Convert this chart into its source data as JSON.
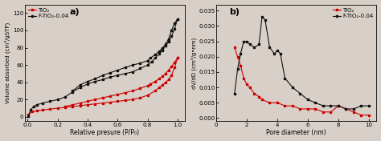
{
  "panel_a": {
    "title": "a)",
    "xlabel": "Relative presure (P/P₀)",
    "ylabel": "Volume absorbed (cm³/gSTP)",
    "ylim": [
      -5,
      130
    ],
    "xlim": [
      -0.02,
      1.05
    ],
    "yticks": [
      0,
      20,
      40,
      60,
      80,
      100,
      120
    ],
    "xticks": [
      0.0,
      0.2,
      0.4,
      0.6,
      0.8,
      1.0
    ],
    "tio2_color": "#cc0000",
    "ftio2_color": "#111111",
    "tio2_label": "TiO₂",
    "ftio2_label": "F-TiO₂-0.04",
    "tio2_adsorption_x": [
      0.005,
      0.03,
      0.06,
      0.1,
      0.15,
      0.2,
      0.25,
      0.3,
      0.35,
      0.4,
      0.45,
      0.5,
      0.55,
      0.6,
      0.65,
      0.7,
      0.75,
      0.8,
      0.85,
      0.88,
      0.9,
      0.92,
      0.94,
      0.96,
      0.98,
      1.0
    ],
    "tio2_adsorption_y": [
      3,
      6,
      7,
      8,
      9,
      10,
      11,
      12,
      13,
      14,
      15,
      16,
      17,
      18,
      19,
      20,
      22,
      25,
      30,
      34,
      37,
      40,
      43,
      48,
      57,
      68
    ],
    "tio2_desorption_x": [
      1.0,
      0.98,
      0.96,
      0.94,
      0.92,
      0.9,
      0.88,
      0.85,
      0.82,
      0.8,
      0.75,
      0.7,
      0.65,
      0.6,
      0.55,
      0.5,
      0.45,
      0.4,
      0.35,
      0.3,
      0.25
    ],
    "tio2_desorption_y": [
      68,
      63,
      58,
      54,
      50,
      47,
      44,
      41,
      38,
      36,
      33,
      30,
      28,
      26,
      24,
      22,
      20,
      18,
      16,
      14,
      12
    ],
    "ftio2_adsorption_x": [
      0.005,
      0.02,
      0.04,
      0.06,
      0.1,
      0.15,
      0.2,
      0.25,
      0.3,
      0.35,
      0.4,
      0.45,
      0.5,
      0.55,
      0.6,
      0.65,
      0.7,
      0.75,
      0.8,
      0.83,
      0.85,
      0.88,
      0.9,
      0.92,
      0.94,
      0.96,
      0.98,
      1.0
    ],
    "ftio2_adsorption_y": [
      1,
      8,
      12,
      14,
      16,
      18,
      20,
      23,
      29,
      34,
      38,
      41,
      43,
      46,
      48,
      50,
      52,
      56,
      60,
      64,
      68,
      73,
      77,
      82,
      87,
      93,
      102,
      113
    ],
    "ftio2_desorption_x": [
      1.0,
      0.98,
      0.96,
      0.94,
      0.92,
      0.9,
      0.88,
      0.85,
      0.82,
      0.8,
      0.75,
      0.7,
      0.65,
      0.6,
      0.55,
      0.5,
      0.45,
      0.4,
      0.35,
      0.3
    ],
    "ftio2_desorption_y": [
      113,
      108,
      100,
      90,
      84,
      80,
      76,
      72,
      68,
      65,
      62,
      60,
      57,
      54,
      51,
      48,
      44,
      41,
      37,
      30
    ]
  },
  "panel_b": {
    "title": "b)",
    "xlabel": "Pore diameter (nm)",
    "ylabel": "dV/dD (cm³/g•nm)",
    "ylim": [
      -0.001,
      0.037
    ],
    "xlim": [
      0,
      10.5
    ],
    "yticks": [
      0.0,
      0.005,
      0.01,
      0.015,
      0.02,
      0.025,
      0.03,
      0.035
    ],
    "xticks": [
      0,
      2,
      4,
      6,
      8,
      10
    ],
    "tio2_color": "#cc0000",
    "ftio2_color": "#111111",
    "tio2_label": "TiO₂",
    "ftio2_label": "F-TiO₂-0.04",
    "tio2_x": [
      1.2,
      1.4,
      1.6,
      1.8,
      2.0,
      2.2,
      2.5,
      2.8,
      3.0,
      3.5,
      4.0,
      4.5,
      5.0,
      5.5,
      6.0,
      6.5,
      7.0,
      7.5,
      8.0,
      8.5,
      9.0,
      9.5,
      10.0
    ],
    "tio2_y": [
      0.023,
      0.02,
      0.017,
      0.013,
      0.011,
      0.01,
      0.008,
      0.007,
      0.006,
      0.005,
      0.005,
      0.004,
      0.004,
      0.003,
      0.003,
      0.003,
      0.002,
      0.002,
      0.004,
      0.003,
      0.002,
      0.001,
      0.001
    ],
    "ftio2_x": [
      1.2,
      1.4,
      1.6,
      1.8,
      2.0,
      2.2,
      2.5,
      2.8,
      3.0,
      3.2,
      3.5,
      3.8,
      4.0,
      4.2,
      4.5,
      5.0,
      5.5,
      6.0,
      6.5,
      7.0,
      7.5,
      8.0,
      8.5,
      9.0,
      9.5,
      10.0
    ],
    "ftio2_y": [
      0.008,
      0.016,
      0.021,
      0.025,
      0.025,
      0.024,
      0.023,
      0.024,
      0.033,
      0.032,
      0.023,
      0.021,
      0.022,
      0.021,
      0.013,
      0.01,
      0.008,
      0.006,
      0.005,
      0.004,
      0.004,
      0.004,
      0.003,
      0.003,
      0.004,
      0.004
    ]
  },
  "bg_color": "#d8d0c8",
  "fig_width": 4.74,
  "fig_height": 1.76,
  "dpi": 100
}
